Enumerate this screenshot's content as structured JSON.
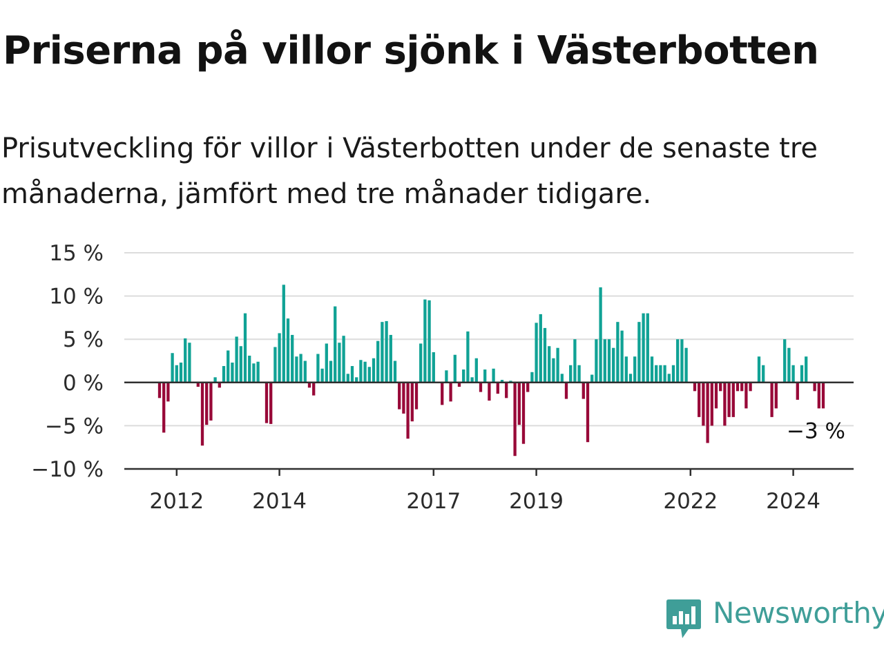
{
  "title": "Priserna på villor sjönk i Västerbotten",
  "subtitle": "Prisutveckling för villor i Västerbotten under de senaste tre månaderna, jämfört med tre månader tidigare.",
  "brand": "Newsworthy",
  "colors": {
    "positive": "#10a295",
    "negative": "#980938",
    "grid": "#dcdcdc",
    "axis": "#2f2f2f",
    "brand": "#3f9e98"
  },
  "chart_data": {
    "type": "bar",
    "ylim": [
      -10,
      15
    ],
    "ytick_values": [
      15,
      10,
      5,
      0,
      -5,
      -10
    ],
    "ytick_labels": [
      "15 %",
      "10 %",
      "5 %",
      "0 %",
      "−5 %",
      "−10 %"
    ],
    "x_start": "2011-09",
    "xtick_labels": [
      "2012",
      "2014",
      "2017",
      "2019",
      "2022",
      "2024"
    ],
    "xtick_dates": [
      "2012-01",
      "2014-01",
      "2017-01",
      "2019-01",
      "2022-01",
      "2024-01"
    ],
    "last_value_label": "−3 %",
    "grid": true,
    "series": [
      {
        "values": [
          -1.8,
          -5.8,
          -2.2,
          3.4,
          2.0,
          2.3,
          5.1,
          4.6,
          0,
          -0.5,
          -7.3,
          -4.9,
          -4.4,
          0.6,
          -0.6,
          1.9,
          3.7,
          2.3,
          5.3,
          4.2,
          8.0,
          3.1,
          2.2,
          2.4,
          0,
          -4.7,
          -4.8,
          4.1,
          5.7,
          11.3,
          7.4,
          5.5,
          3.0,
          3.3,
          2.5,
          -0.6,
          -1.5,
          3.3,
          1.6,
          4.5,
          2.5,
          8.8,
          4.6,
          5.4,
          1.0,
          1.9,
          0.6,
          2.6,
          2.4,
          1.8,
          2.8,
          4.8,
          7.0,
          7.1,
          5.5,
          2.5,
          -3.1,
          -3.6,
          -6.5,
          -4.5,
          -3.1,
          4.5,
          9.6,
          9.5,
          3.5,
          0,
          -2.6,
          1.4,
          -2.2,
          3.2,
          -0.5,
          1.5,
          5.9,
          0.6,
          2.8,
          -1.1,
          1.5,
          -2.1,
          1.6,
          -1.3,
          0.3,
          -1.8,
          0.2,
          -8.5,
          -4.9,
          -7.1,
          -1.1,
          1.2,
          6.9,
          7.9,
          6.3,
          4.2,
          2.8,
          4.0,
          1.0,
          -1.9,
          2.0,
          5.0,
          2.0,
          -1.9,
          -6.9,
          0.9,
          5.0,
          11.0,
          5.0,
          5.0,
          4.0,
          7.0,
          6.0,
          3.0,
          1.0,
          3.0,
          7.0,
          8.0,
          8.0,
          3.0,
          2.0,
          2.0,
          2.0,
          1.0,
          2.0,
          5.0,
          5.0,
          4.0,
          0,
          -1.0,
          -4.0,
          -5.0,
          -7.0,
          -5.0,
          -3.0,
          -1.0,
          -5.0,
          -4.0,
          -4.0,
          -1.0,
          -1.0,
          -3.0,
          -1.0,
          0,
          3.0,
          2.0,
          0,
          -4.0,
          -3.0,
          0,
          5.0,
          4.0,
          2.0,
          -2.0,
          2.0,
          3.0,
          0,
          -1.0,
          -3.0,
          -3.0
        ]
      }
    ]
  }
}
